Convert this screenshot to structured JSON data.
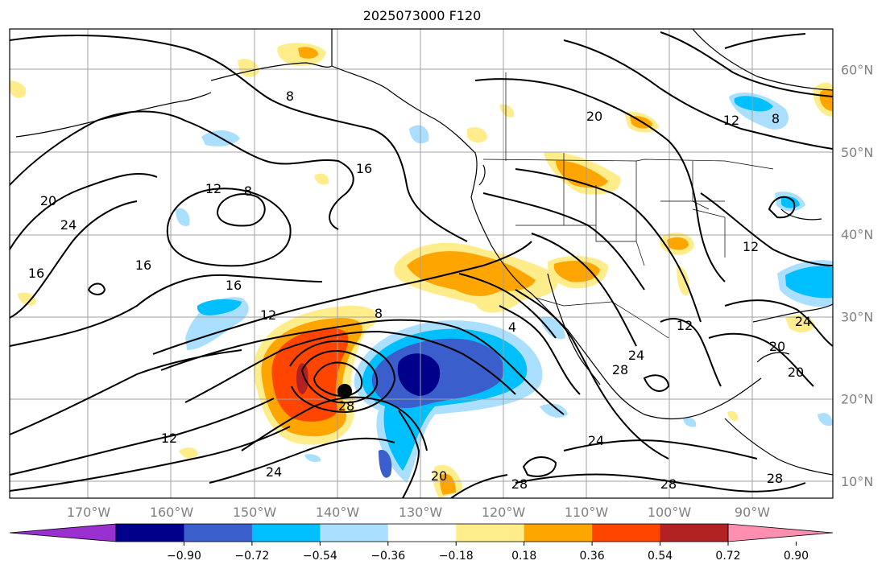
{
  "title": "2025073000 F120",
  "map": {
    "lat_labels": [
      {
        "text": "60°N",
        "lat": 60
      },
      {
        "text": "50°N",
        "lat": 50
      },
      {
        "text": "40°N",
        "lat": 40
      },
      {
        "text": "30°N",
        "lat": 30
      },
      {
        "text": "20°N",
        "lat": 20
      },
      {
        "text": "10°N",
        "lat": 10
      }
    ],
    "lon_labels": [
      {
        "text": "170°W",
        "lon": -170
      },
      {
        "text": "160°W",
        "lon": -160
      },
      {
        "text": "150°W",
        "lon": -150
      },
      {
        "text": "140°W",
        "lon": -140
      },
      {
        "text": "130°W",
        "lon": -130
      },
      {
        "text": "120°W",
        "lon": -120
      },
      {
        "text": "110°W",
        "lon": -110
      },
      {
        "text": "100°W",
        "lon": -100
      },
      {
        "text": "90°W",
        "lon": -90
      }
    ],
    "contour_labels": [
      "8",
      "16",
      "20",
      "12",
      "8",
      "16",
      "24",
      "20",
      "16",
      "12",
      "16",
      "12",
      "8",
      "4",
      "24",
      "28",
      "28",
      "24",
      "20",
      "28",
      "28",
      "24",
      "12",
      "28",
      "20",
      "12",
      "8",
      "24",
      "20",
      "12"
    ],
    "storm_center_label": "28"
  },
  "colorbar": {
    "tick_labels": [
      "−0.90",
      "−0.72",
      "−0.54",
      "−0.36",
      "−0.18",
      "0.18",
      "0.36",
      "0.54",
      "0.72",
      "0.90"
    ],
    "colors": [
      "#9b30d0",
      "#00008b",
      "#3a5fcd",
      "#00bfff",
      "#aadfff",
      "#ffffff",
      "#ffec8b",
      "#ffa500",
      "#ff4500",
      "#b22222",
      "#ff8fb0"
    ]
  }
}
